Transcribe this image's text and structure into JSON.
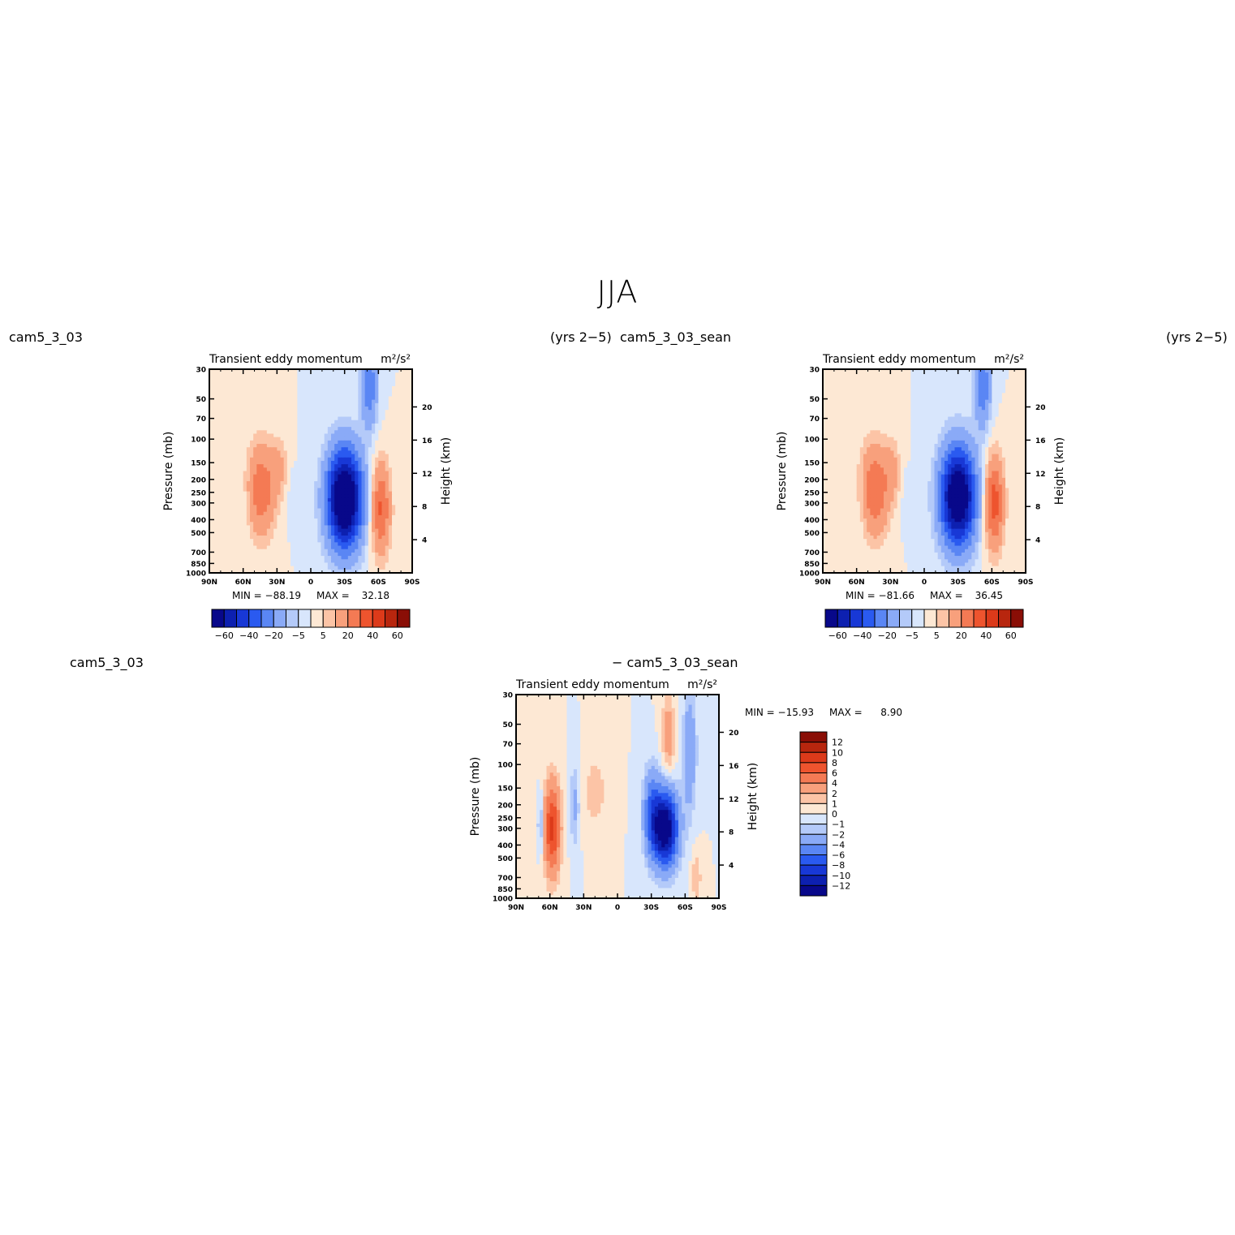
{
  "page": {
    "title": "JJA"
  },
  "headers": {
    "top_left_case": "cam5_3_03",
    "top_left_years": "(yrs 2−5)",
    "top_right_case": "cam5_3_03_sean",
    "top_right_years": "(yrs 2−5)",
    "bottom_case_a": "cam5_3_03",
    "bottom_case_b": "− cam5_3_03_sean"
  },
  "colors": {
    "main_scale": [
      "#08088a",
      "#0d20b0",
      "#1838d6",
      "#2a5af0",
      "#5a86f4",
      "#8aaaf7",
      "#b4caf9",
      "#d8e6fc",
      "#fde8d4",
      "#fcc4a6",
      "#f8a07c",
      "#f47a54",
      "#ee542e",
      "#dc3a1a",
      "#b8260e",
      "#8a0e06"
    ],
    "diff_scale": [
      "#08088a",
      "#0d20b0",
      "#1838d6",
      "#2a5af0",
      "#5a86f4",
      "#8aaaf7",
      "#b4caf9",
      "#d8e6fc",
      "#fde8d4",
      "#fcc4a6",
      "#f8a07c",
      "#f47a54",
      "#ee542e",
      "#dc3a1a",
      "#b8260e",
      "#8a0e06"
    ]
  },
  "chart_data": [
    {
      "type": "heatmap",
      "title": "Transient eddy momentum",
      "units": "m²/s²",
      "xlabel": "",
      "ylabel": "Pressure (mb)",
      "ylabel_right": "Height (km)",
      "x_ticks": [
        "90N",
        "60N",
        "30N",
        "0",
        "30S",
        "60S",
        "90S"
      ],
      "y_ticks": [
        "30",
        "50",
        "70",
        "100",
        "150",
        "200",
        "250",
        "300",
        "400",
        "500",
        "700",
        "850",
        "1000"
      ],
      "y_ticks_right": [
        "20",
        "16",
        "12",
        "8",
        "4"
      ],
      "stats": {
        "min_label": "MIN =",
        "min": "−88.19",
        "max_label": "MAX =",
        "max": "32.18"
      },
      "colorbar": {
        "levels": [
          -70,
          -60,
          -50,
          -40,
          -30,
          -20,
          -10,
          -5,
          0,
          5,
          10,
          20,
          30,
          40,
          50,
          60,
          70
        ],
        "labels": [
          "−60",
          "−40",
          "−20",
          "−5",
          "5",
          "20",
          "40",
          "60"
        ],
        "orientation": "horizontal"
      },
      "features": [
        {
          "lat": 58,
          "p": 300,
          "value": -3,
          "sx": 5,
          "sy": 0.45
        },
        {
          "lat": 44,
          "p": 240,
          "value": 28,
          "sx": 9,
          "sy": 0.55
        },
        {
          "lat": 28,
          "p": 160,
          "value": 10,
          "sx": 5,
          "sy": 0.35
        },
        {
          "lat": 17,
          "p": 280,
          "value": -3,
          "sx": 2.5,
          "sy": 0.35
        },
        {
          "lat": -30,
          "p": 280,
          "value": -85,
          "sx": 11,
          "sy": 0.6
        },
        {
          "lat": -62,
          "p": 330,
          "value": 32,
          "sx": 6,
          "sy": 0.55
        },
        {
          "lat": -52,
          "p": 40,
          "value": -28,
          "sx": 5,
          "sy": 0.5
        }
      ]
    },
    {
      "type": "heatmap",
      "title": "Transient eddy momentum",
      "units": "m²/s²",
      "xlabel": "",
      "ylabel": "Pressure (mb)",
      "ylabel_right": "Height (km)",
      "x_ticks": [
        "90N",
        "60N",
        "30N",
        "0",
        "30S",
        "60S",
        "90S"
      ],
      "y_ticks": [
        "30",
        "50",
        "70",
        "100",
        "150",
        "200",
        "250",
        "300",
        "400",
        "500",
        "700",
        "850",
        "1000"
      ],
      "y_ticks_right": [
        "20",
        "16",
        "12",
        "8",
        "4"
      ],
      "stats": {
        "min_label": "MIN =",
        "min": "−81.66",
        "max_label": "MAX =",
        "max": "36.45"
      },
      "colorbar": {
        "levels": [
          -70,
          -60,
          -50,
          -40,
          -30,
          -20,
          -10,
          -5,
          0,
          5,
          10,
          20,
          30,
          40,
          50,
          60,
          70
        ],
        "labels": [
          "−60",
          "−40",
          "−20",
          "−5",
          "5",
          "20",
          "40",
          "60"
        ],
        "orientation": "horizontal"
      },
      "features": [
        {
          "lat": 55,
          "p": 300,
          "value": -4,
          "sx": 4,
          "sy": 0.45
        },
        {
          "lat": 44,
          "p": 240,
          "value": 30,
          "sx": 9,
          "sy": 0.55
        },
        {
          "lat": 28,
          "p": 170,
          "value": 11,
          "sx": 5,
          "sy": 0.35
        },
        {
          "lat": 17,
          "p": 280,
          "value": -3,
          "sx": 2.5,
          "sy": 0.35
        },
        {
          "lat": -30,
          "p": 270,
          "value": -80,
          "sx": 11,
          "sy": 0.6
        },
        {
          "lat": -62,
          "p": 300,
          "value": 36,
          "sx": 6,
          "sy": 0.55
        },
        {
          "lat": -52,
          "p": 40,
          "value": -28,
          "sx": 5,
          "sy": 0.5
        }
      ]
    },
    {
      "type": "heatmap",
      "title": "Transient eddy momentum",
      "units": "m²/s²",
      "xlabel": "",
      "ylabel": "Pressure (mb)",
      "ylabel_right": "Height (km)",
      "x_ticks": [
        "90N",
        "60N",
        "30N",
        "0",
        "30S",
        "60S",
        "90S"
      ],
      "y_ticks": [
        "30",
        "50",
        "70",
        "100",
        "150",
        "200",
        "250",
        "300",
        "400",
        "500",
        "700",
        "850",
        "1000"
      ],
      "y_ticks_right": [
        "20",
        "16",
        "12",
        "8",
        "4"
      ],
      "stats": {
        "min_label": "MIN =",
        "min": "−15.93",
        "max_label": "MAX =",
        "max": "8.90"
      },
      "colorbar": {
        "levels": [
          -14,
          -12,
          -10,
          -8,
          -6,
          -4,
          -2,
          -1,
          0,
          1,
          2,
          4,
          6,
          8,
          10,
          12,
          14
        ],
        "labels": [
          "12",
          "10",
          "8",
          "6",
          "4",
          "2",
          "1",
          "0",
          "−1",
          "−2",
          "−4",
          "−6",
          "−8",
          "−10",
          "−12"
        ],
        "orientation": "vertical"
      },
      "features": [
        {
          "lat": 68,
          "p": 280,
          "value": -3,
          "sx": 2,
          "sy": 0.35
        },
        {
          "lat": 58,
          "p": 300,
          "value": 8.5,
          "sx": 5,
          "sy": 0.55
        },
        {
          "lat": 38,
          "p": 200,
          "value": -2.5,
          "sx": 3,
          "sy": 0.5
        },
        {
          "lat": 20,
          "p": 160,
          "value": 1.5,
          "sx": 8,
          "sy": 0.5
        },
        {
          "lat": -30,
          "p": 220,
          "value": -5,
          "sx": 5,
          "sy": 0.5
        },
        {
          "lat": -42,
          "p": 300,
          "value": -15,
          "sx": 8,
          "sy": 0.45
        },
        {
          "lat": -45,
          "p": 60,
          "value": 3,
          "sx": 4,
          "sy": 0.5
        },
        {
          "lat": -64,
          "p": 80,
          "value": -4,
          "sx": 4,
          "sy": 0.7
        },
        {
          "lat": -70,
          "p": 700,
          "value": 2,
          "sx": 3,
          "sy": 0.3
        }
      ]
    }
  ]
}
